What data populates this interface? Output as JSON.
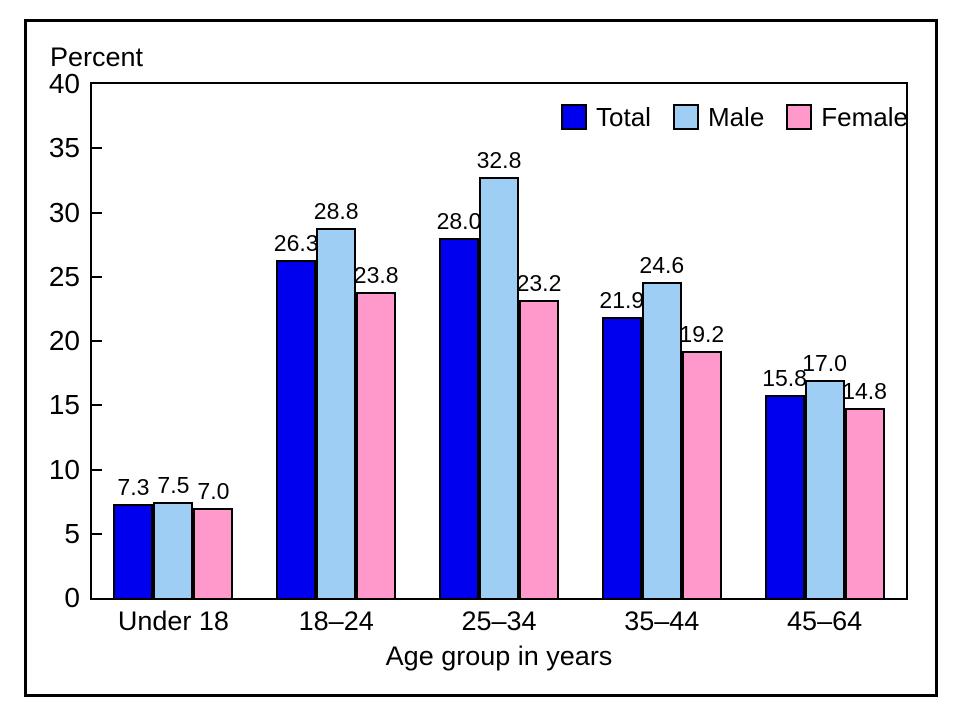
{
  "chart_data": {
    "type": "bar",
    "title": "",
    "ylabel": "Percent",
    "xlabel": "Age group in years",
    "ylim": [
      0,
      40
    ],
    "yticks": [
      0,
      5,
      10,
      15,
      20,
      25,
      30,
      35,
      40
    ],
    "categories": [
      "Under 18",
      "18–24",
      "25–34",
      "35–44",
      "45–64"
    ],
    "series": [
      {
        "name": "Total",
        "color": "#0000ee",
        "values": [
          7.3,
          26.3,
          28.0,
          21.9,
          15.8
        ]
      },
      {
        "name": "Male",
        "color": "#9fcef5",
        "values": [
          7.5,
          28.8,
          32.8,
          24.6,
          17.0
        ]
      },
      {
        "name": "Female",
        "color": "#ff99cc",
        "values": [
          7.0,
          23.8,
          23.2,
          19.2,
          14.8
        ]
      }
    ],
    "value_labels_shown": true,
    "value_label_format": "one-decimal",
    "legend": {
      "position": "top-right",
      "entries": [
        "Total",
        "Male",
        "Female"
      ]
    },
    "grid": false,
    "frame_color": "#000000",
    "bar_outline_color": "#000000"
  }
}
